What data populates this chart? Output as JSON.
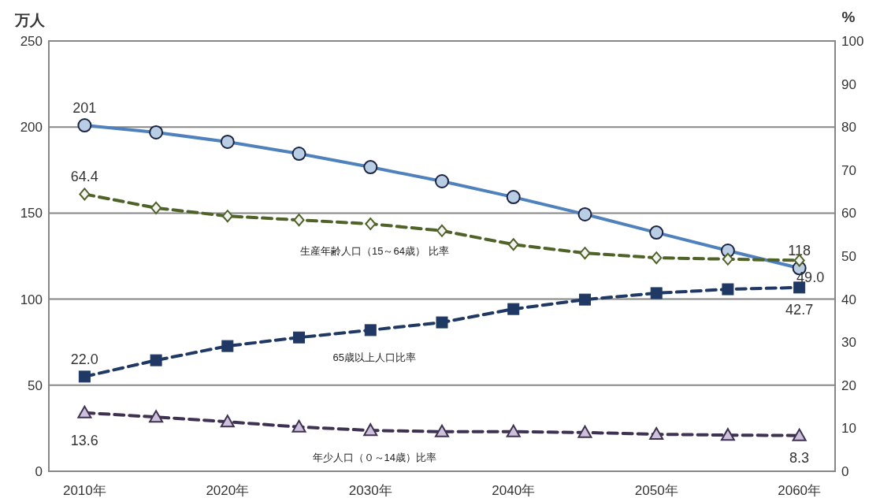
{
  "chart_data": {
    "type": "line",
    "ylabel": "万人",
    "y2label": "%",
    "categories": [
      "2010年",
      null,
      "2020年",
      null,
      "2030年",
      null,
      "2040年",
      null,
      "2050年",
      null,
      "2060年"
    ],
    "ylim": [
      0,
      250
    ],
    "yticks": [
      0,
      50,
      100,
      150,
      200,
      250
    ],
    "y2lim": [
      0,
      100
    ],
    "y2ticks": [
      0,
      10,
      20,
      30,
      40,
      50,
      60,
      70,
      80,
      90,
      100
    ],
    "grid": "y",
    "series": [
      {
        "color": "#4f81bd",
        "marker": "circle",
        "line_style": "solid",
        "axis": "y",
        "values": [
          201,
          196.9,
          191.4,
          184.5,
          176.7,
          168.5,
          159.3,
          149.3,
          138.7,
          128.2,
          118
        ],
        "value_labels": [
          "201",
          null,
          null,
          null,
          null,
          null,
          null,
          null,
          null,
          null,
          "118"
        ]
      },
      {
        "name": "生産年齢人口（15～64歳） 比率",
        "color": "#4f6228",
        "marker": "diamond",
        "line_style": "dashed",
        "axis": "y2",
        "values": [
          64.4,
          61.2,
          59.3,
          58.4,
          57.5,
          55.9,
          52.7,
          50.7,
          49.6,
          49.3,
          49.0
        ],
        "value_labels": [
          "64.4",
          null,
          null,
          null,
          null,
          null,
          null,
          null,
          null,
          null,
          "49.0"
        ]
      },
      {
        "name": "65歳以上人口比率",
        "color": "#1f3864",
        "marker": "square",
        "line_style": "dashed",
        "axis": "y2",
        "values": [
          22.0,
          25.8,
          29.1,
          31.1,
          32.8,
          34.6,
          37.7,
          39.9,
          41.4,
          42.3,
          42.7
        ],
        "value_labels": [
          "22.0",
          null,
          null,
          null,
          null,
          null,
          null,
          null,
          null,
          null,
          "42.7"
        ]
      },
      {
        "name": "年少人口（０～14歳）比率",
        "color": "#3f3151",
        "marker": "triangle",
        "line_style": "dashed",
        "axis": "y2",
        "values": [
          13.6,
          12.6,
          11.5,
          10.3,
          9.5,
          9.2,
          9.2,
          9.0,
          8.6,
          8.4,
          8.3
        ],
        "value_labels": [
          "13.6",
          null,
          null,
          null,
          null,
          null,
          null,
          null,
          null,
          null,
          "8.3"
        ]
      }
    ]
  }
}
